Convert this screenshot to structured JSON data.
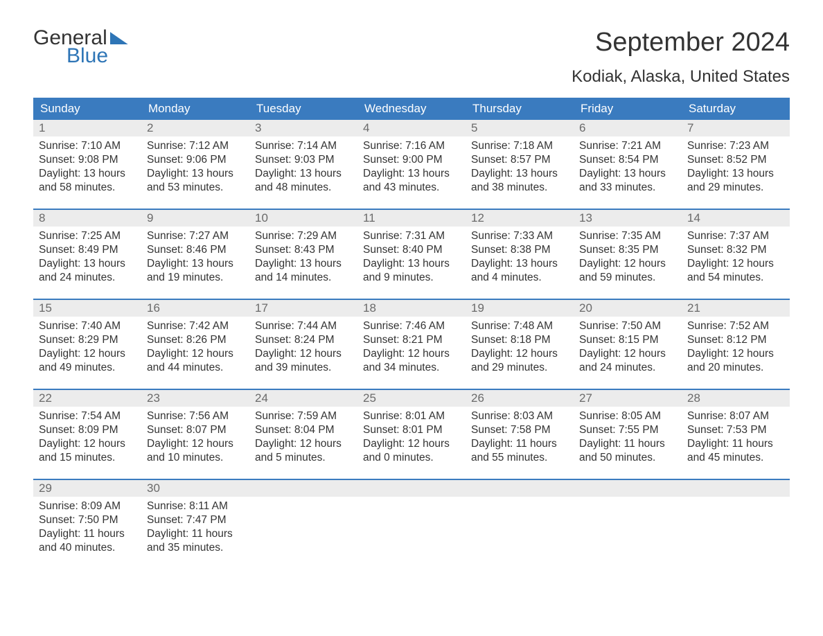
{
  "logo": {
    "text_top": "General",
    "text_bottom": "Blue",
    "accent_color": "#2e75b6"
  },
  "title": "September 2024",
  "location": "Kodiak, Alaska, United States",
  "colors": {
    "header_bg": "#3a7bbf",
    "header_text": "#ffffff",
    "date_bar_bg": "#ececec",
    "date_bar_text": "#6a6a6a",
    "week_divider": "#3a7bbf",
    "body_text": "#333333",
    "background": "#ffffff"
  },
  "typography": {
    "title_fontsize": 38,
    "location_fontsize": 24,
    "dayheader_fontsize": 17,
    "date_fontsize": 17,
    "cell_fontsize": 15.5
  },
  "day_names": [
    "Sunday",
    "Monday",
    "Tuesday",
    "Wednesday",
    "Thursday",
    "Friday",
    "Saturday"
  ],
  "weeks": [
    [
      {
        "date": "1",
        "sunrise": "Sunrise: 7:10 AM",
        "sunset": "Sunset: 9:08 PM",
        "dl1": "Daylight: 13 hours",
        "dl2": "and 58 minutes."
      },
      {
        "date": "2",
        "sunrise": "Sunrise: 7:12 AM",
        "sunset": "Sunset: 9:06 PM",
        "dl1": "Daylight: 13 hours",
        "dl2": "and 53 minutes."
      },
      {
        "date": "3",
        "sunrise": "Sunrise: 7:14 AM",
        "sunset": "Sunset: 9:03 PM",
        "dl1": "Daylight: 13 hours",
        "dl2": "and 48 minutes."
      },
      {
        "date": "4",
        "sunrise": "Sunrise: 7:16 AM",
        "sunset": "Sunset: 9:00 PM",
        "dl1": "Daylight: 13 hours",
        "dl2": "and 43 minutes."
      },
      {
        "date": "5",
        "sunrise": "Sunrise: 7:18 AM",
        "sunset": "Sunset: 8:57 PM",
        "dl1": "Daylight: 13 hours",
        "dl2": "and 38 minutes."
      },
      {
        "date": "6",
        "sunrise": "Sunrise: 7:21 AM",
        "sunset": "Sunset: 8:54 PM",
        "dl1": "Daylight: 13 hours",
        "dl2": "and 33 minutes."
      },
      {
        "date": "7",
        "sunrise": "Sunrise: 7:23 AM",
        "sunset": "Sunset: 8:52 PM",
        "dl1": "Daylight: 13 hours",
        "dl2": "and 29 minutes."
      }
    ],
    [
      {
        "date": "8",
        "sunrise": "Sunrise: 7:25 AM",
        "sunset": "Sunset: 8:49 PM",
        "dl1": "Daylight: 13 hours",
        "dl2": "and 24 minutes."
      },
      {
        "date": "9",
        "sunrise": "Sunrise: 7:27 AM",
        "sunset": "Sunset: 8:46 PM",
        "dl1": "Daylight: 13 hours",
        "dl2": "and 19 minutes."
      },
      {
        "date": "10",
        "sunrise": "Sunrise: 7:29 AM",
        "sunset": "Sunset: 8:43 PM",
        "dl1": "Daylight: 13 hours",
        "dl2": "and 14 minutes."
      },
      {
        "date": "11",
        "sunrise": "Sunrise: 7:31 AM",
        "sunset": "Sunset: 8:40 PM",
        "dl1": "Daylight: 13 hours",
        "dl2": "and 9 minutes."
      },
      {
        "date": "12",
        "sunrise": "Sunrise: 7:33 AM",
        "sunset": "Sunset: 8:38 PM",
        "dl1": "Daylight: 13 hours",
        "dl2": "and 4 minutes."
      },
      {
        "date": "13",
        "sunrise": "Sunrise: 7:35 AM",
        "sunset": "Sunset: 8:35 PM",
        "dl1": "Daylight: 12 hours",
        "dl2": "and 59 minutes."
      },
      {
        "date": "14",
        "sunrise": "Sunrise: 7:37 AM",
        "sunset": "Sunset: 8:32 PM",
        "dl1": "Daylight: 12 hours",
        "dl2": "and 54 minutes."
      }
    ],
    [
      {
        "date": "15",
        "sunrise": "Sunrise: 7:40 AM",
        "sunset": "Sunset: 8:29 PM",
        "dl1": "Daylight: 12 hours",
        "dl2": "and 49 minutes."
      },
      {
        "date": "16",
        "sunrise": "Sunrise: 7:42 AM",
        "sunset": "Sunset: 8:26 PM",
        "dl1": "Daylight: 12 hours",
        "dl2": "and 44 minutes."
      },
      {
        "date": "17",
        "sunrise": "Sunrise: 7:44 AM",
        "sunset": "Sunset: 8:24 PM",
        "dl1": "Daylight: 12 hours",
        "dl2": "and 39 minutes."
      },
      {
        "date": "18",
        "sunrise": "Sunrise: 7:46 AM",
        "sunset": "Sunset: 8:21 PM",
        "dl1": "Daylight: 12 hours",
        "dl2": "and 34 minutes."
      },
      {
        "date": "19",
        "sunrise": "Sunrise: 7:48 AM",
        "sunset": "Sunset: 8:18 PM",
        "dl1": "Daylight: 12 hours",
        "dl2": "and 29 minutes."
      },
      {
        "date": "20",
        "sunrise": "Sunrise: 7:50 AM",
        "sunset": "Sunset: 8:15 PM",
        "dl1": "Daylight: 12 hours",
        "dl2": "and 24 minutes."
      },
      {
        "date": "21",
        "sunrise": "Sunrise: 7:52 AM",
        "sunset": "Sunset: 8:12 PM",
        "dl1": "Daylight: 12 hours",
        "dl2": "and 20 minutes."
      }
    ],
    [
      {
        "date": "22",
        "sunrise": "Sunrise: 7:54 AM",
        "sunset": "Sunset: 8:09 PM",
        "dl1": "Daylight: 12 hours",
        "dl2": "and 15 minutes."
      },
      {
        "date": "23",
        "sunrise": "Sunrise: 7:56 AM",
        "sunset": "Sunset: 8:07 PM",
        "dl1": "Daylight: 12 hours",
        "dl2": "and 10 minutes."
      },
      {
        "date": "24",
        "sunrise": "Sunrise: 7:59 AM",
        "sunset": "Sunset: 8:04 PM",
        "dl1": "Daylight: 12 hours",
        "dl2": "and 5 minutes."
      },
      {
        "date": "25",
        "sunrise": "Sunrise: 8:01 AM",
        "sunset": "Sunset: 8:01 PM",
        "dl1": "Daylight: 12 hours",
        "dl2": "and 0 minutes."
      },
      {
        "date": "26",
        "sunrise": "Sunrise: 8:03 AM",
        "sunset": "Sunset: 7:58 PM",
        "dl1": "Daylight: 11 hours",
        "dl2": "and 55 minutes."
      },
      {
        "date": "27",
        "sunrise": "Sunrise: 8:05 AM",
        "sunset": "Sunset: 7:55 PM",
        "dl1": "Daylight: 11 hours",
        "dl2": "and 50 minutes."
      },
      {
        "date": "28",
        "sunrise": "Sunrise: 8:07 AM",
        "sunset": "Sunset: 7:53 PM",
        "dl1": "Daylight: 11 hours",
        "dl2": "and 45 minutes."
      }
    ],
    [
      {
        "date": "29",
        "sunrise": "Sunrise: 8:09 AM",
        "sunset": "Sunset: 7:50 PM",
        "dl1": "Daylight: 11 hours",
        "dl2": "and 40 minutes."
      },
      {
        "date": "30",
        "sunrise": "Sunrise: 8:11 AM",
        "sunset": "Sunset: 7:47 PM",
        "dl1": "Daylight: 11 hours",
        "dl2": "and 35 minutes."
      },
      null,
      null,
      null,
      null,
      null
    ]
  ]
}
